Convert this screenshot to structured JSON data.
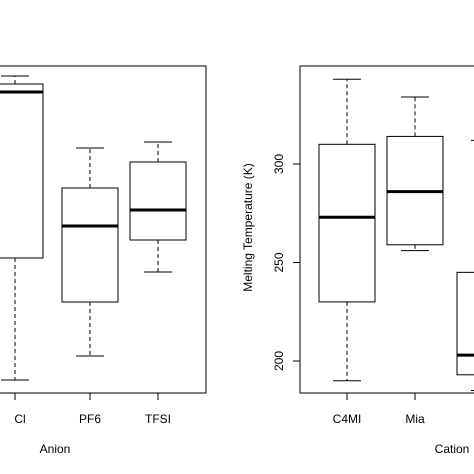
{
  "chart_data": [
    {
      "type": "box",
      "xlabel": "Anion",
      "ylabel": "",
      "ylim": [
        188,
        350
      ],
      "categories": [
        "Cl",
        "PF6",
        "TFSI"
      ],
      "boxes": [
        {
          "category": "Cl",
          "whisker_low": 191,
          "q1": 252,
          "median": 335,
          "q3": 339,
          "whisker_high": 343
        },
        {
          "category": "PF6",
          "whisker_low": 203,
          "q1": 230,
          "median": 268,
          "q3": 287,
          "whisker_high": 307
        },
        {
          "category": "TFSI",
          "whisker_low": 245,
          "q1": 261,
          "median": 276,
          "q3": 300,
          "whisker_high": 310
        }
      ]
    },
    {
      "type": "box",
      "xlabel": "Cation",
      "ylabel": "Melting Temperature (K)",
      "ylim": [
        185,
        347
      ],
      "yticks": [
        200,
        250,
        300
      ],
      "categories": [
        "C4MI",
        "Mia",
        ""
      ],
      "boxes": [
        {
          "category": "C4MI",
          "whisker_low": 190,
          "q1": 230,
          "median": 273,
          "q3": 310,
          "whisker_high": 343
        },
        {
          "category": "Mia",
          "whisker_low": 256,
          "q1": 259,
          "median": 286,
          "q3": 314,
          "whisker_high": 334
        },
        {
          "category": "",
          "whisker_low": 185,
          "q1": 193,
          "median": 203,
          "q3": 245,
          "whisker_high": 312
        }
      ]
    }
  ]
}
